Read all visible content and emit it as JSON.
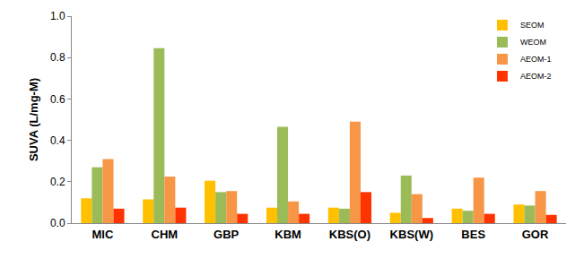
{
  "chart_data": {
    "type": "bar",
    "y_label": "SUVA (L/mg-M)",
    "categories": [
      "MIC",
      "CHM",
      "GBP",
      "KBM",
      "KBS(O)",
      "KBS(W)",
      "BES",
      "GOR"
    ],
    "series": [
      {
        "name": "SEOM",
        "color": "#FFC000",
        "values": [
          0.12,
          0.115,
          0.205,
          0.075,
          0.075,
          0.05,
          0.07,
          0.09
        ]
      },
      {
        "name": "WEOM",
        "color": "#9BBB59",
        "values": [
          0.27,
          0.845,
          0.15,
          0.465,
          0.07,
          0.23,
          0.06,
          0.085
        ]
      },
      {
        "name": "AEOM-1",
        "color": "#F79646",
        "values": [
          0.31,
          0.225,
          0.155,
          0.105,
          0.49,
          0.14,
          0.22,
          0.155
        ]
      },
      {
        "name": "AEOM-2",
        "color": "#FF3300",
        "values": [
          0.07,
          0.075,
          0.045,
          0.045,
          0.15,
          0.025,
          0.045,
          0.04
        ]
      }
    ],
    "ylim": [
      0,
      1
    ],
    "yticks": [
      {
        "value": 0,
        "label": "0.0"
      },
      0.2,
      0.4,
      0.6,
      0.8,
      {
        "value": 1,
        "label": "1.0"
      }
    ],
    "grid": false,
    "legend": "top-right"
  }
}
